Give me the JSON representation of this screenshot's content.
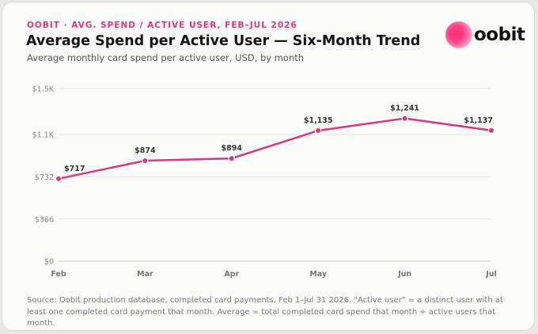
{
  "header": {
    "eyebrow": "OOBIT · AVG. SPEND / ACTIVE USER, FEB–JUL 2026",
    "title": "Average Spend per Active User — Six-Month Trend",
    "subtitle": "Average monthly card spend per active user, USD, by month"
  },
  "logo": {
    "text": "oobit",
    "mark_color": "#ff2f6e"
  },
  "chart_data": {
    "type": "line",
    "categories": [
      "Feb",
      "Mar",
      "Apr",
      "May",
      "Jun",
      "Jul"
    ],
    "series": [
      {
        "values": [
          717,
          874,
          894,
          1135,
          1241,
          1137
        ],
        "color": "#d63a7e"
      }
    ],
    "data_labels": [
      "$717",
      "$874",
      "$894",
      "$1,135",
      "$1,241",
      "$1,137"
    ],
    "y_ticks": [
      0,
      366,
      732,
      1100,
      1500
    ],
    "y_tick_labels": [
      "$0",
      "$366",
      "$732",
      "$1.1K",
      "$1.5K"
    ],
    "ylim": [
      0,
      1500
    ],
    "grid": true,
    "legend": "none",
    "xlabel": "",
    "ylabel": ""
  },
  "footer": {
    "source": "Source: Oobit production database, completed card payments, Feb 1–Jul 31 2026. \"Active user\" = a distinct user with at least one completed card payment that month. Average = total completed card spend that month ÷ active users that month."
  },
  "colors": {
    "accent": "#d63a7e",
    "grid": "#e4e4e2",
    "background": "#fbfbfa"
  }
}
